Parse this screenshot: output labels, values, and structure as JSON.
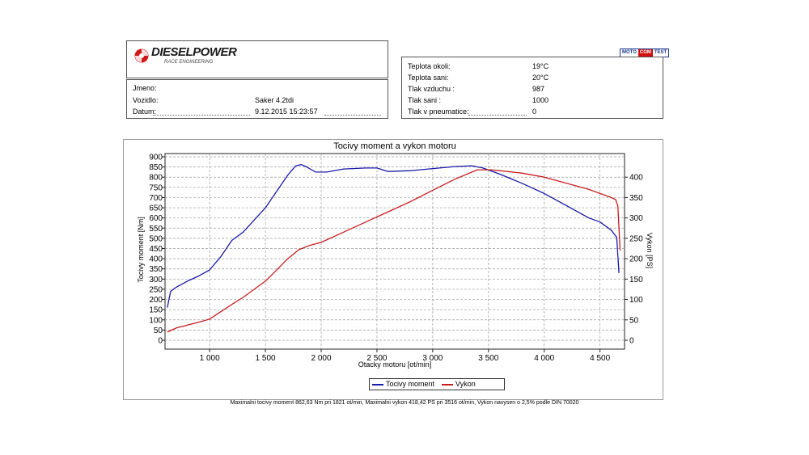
{
  "header": {
    "logo_text": "DIESELPOWER",
    "logo_subtitle": "RACE ENGINEERING",
    "badge": [
      "MOTO",
      "COM",
      "TEST"
    ]
  },
  "vehicle": {
    "rows": [
      {
        "label": "Jmeno:",
        "value": ""
      },
      {
        "label": "Vozidlo:",
        "value": "Saker 4.2tdi"
      },
      {
        "label": "Datum:",
        "value": "9.12.2015 15:23:57"
      }
    ]
  },
  "conditions": {
    "rows": [
      {
        "label": "Teplota okoli:",
        "value": "19°C"
      },
      {
        "label": "Teplota sani:",
        "value": "20°C"
      },
      {
        "label": "Tlak vzduchu :",
        "value": "987"
      },
      {
        "label": "Tlak sani :",
        "value": "1000"
      },
      {
        "label": "Tlak v pneumatice:",
        "value": "0"
      }
    ]
  },
  "chart_data": {
    "type": "line",
    "title": "Tocivy moment a vykon motoru",
    "xlabel": "Otacky motoru [ot/min]",
    "ylabel_left": "Tocivy moment [Nm]",
    "ylabel_right": "Vykon [PS]",
    "xlim": [
      600,
      4720
    ],
    "ylim_left": [
      0,
      900
    ],
    "ylim_right": [
      0,
      450
    ],
    "x_ticks": [
      1000,
      1500,
      2000,
      2500,
      3000,
      3500,
      4000,
      4500
    ],
    "x_tick_labels": [
      "1 000",
      "1 500",
      "2 000",
      "2 500",
      "3 000",
      "3 500",
      "4 000",
      "4 500"
    ],
    "y_left_ticks": [
      0,
      50,
      100,
      150,
      200,
      250,
      300,
      350,
      400,
      450,
      500,
      550,
      600,
      650,
      700,
      750,
      800,
      850,
      900
    ],
    "y_right_ticks": [
      0,
      50,
      100,
      150,
      200,
      250,
      300,
      350,
      400
    ],
    "grid": true,
    "legend": "bottom",
    "series": [
      {
        "name": "Tocivy moment",
        "axis": "left",
        "color": "#1a1aa8",
        "x": [
          620,
          650,
          700,
          800,
          900,
          1000,
          1100,
          1200,
          1300,
          1400,
          1500,
          1600,
          1700,
          1770,
          1821,
          1870,
          1950,
          2050,
          2200,
          2400,
          2500,
          2600,
          2700,
          2800,
          3000,
          3200,
          3350,
          3450,
          3600,
          3800,
          4000,
          4200,
          4400,
          4500,
          4600,
          4650,
          4670
        ],
        "y": [
          160,
          240,
          260,
          290,
          315,
          345,
          410,
          490,
          530,
          590,
          650,
          730,
          810,
          855,
          862,
          850,
          825,
          825,
          840,
          845,
          845,
          828,
          830,
          832,
          842,
          852,
          856,
          845,
          815,
          770,
          720,
          660,
          600,
          580,
          540,
          505,
          330
        ]
      },
      {
        "name": "Vykon",
        "axis": "right",
        "color": "#c81e1e",
        "x": [
          620,
          700,
          800,
          900,
          1000,
          1100,
          1200,
          1300,
          1400,
          1500,
          1600,
          1700,
          1800,
          1900,
          2000,
          2200,
          2400,
          2600,
          2800,
          3000,
          3200,
          3400,
          3516,
          3600,
          3800,
          4000,
          4200,
          4400,
          4500,
          4600,
          4640,
          4660,
          4680
        ],
        "y": [
          20,
          30,
          37,
          44,
          52,
          70,
          88,
          105,
          125,
          145,
          172,
          200,
          222,
          233,
          240,
          265,
          290,
          315,
          340,
          368,
          395,
          418,
          418,
          416,
          410,
          400,
          385,
          370,
          360,
          350,
          345,
          330,
          220
        ]
      }
    ]
  },
  "footer": "Maximalni tocivy moment 862,63 Nm pri 1821 ot/min,  Maximalni vykon 418,42 PS pri 3516 ot/min,  Vykon navysen o 2,5% podle DIN 70020"
}
